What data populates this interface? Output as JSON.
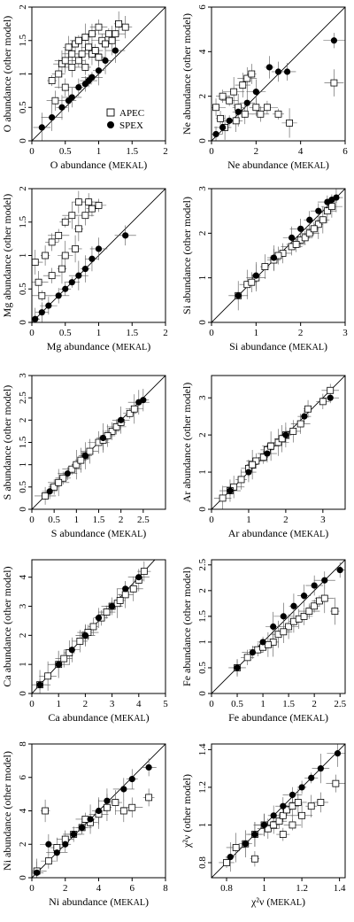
{
  "chart_data": [
    {
      "type": "scatter",
      "xlabel": "O abundance (MEKAL)",
      "ylabel": "O abundance (other model)",
      "xlim": [
        0,
        2
      ],
      "ylim": [
        0,
        2
      ],
      "xticks": [
        0,
        0.5,
        1,
        1.5,
        2
      ],
      "yticks": [
        0,
        0.5,
        1,
        1.5,
        2
      ],
      "diagonal": true,
      "legend": {
        "position": "bottom-right",
        "entries": [
          "APEC",
          "SPEX"
        ]
      },
      "series": [
        {
          "name": "APEC",
          "marker": "open-square",
          "x": [
            0.3,
            0.4,
            0.45,
            0.5,
            0.55,
            0.6,
            0.6,
            0.65,
            0.7,
            0.7,
            0.75,
            0.8,
            0.85,
            0.9,
            0.9,
            1.0,
            1.0,
            1.05,
            1.1,
            1.2,
            1.25,
            1.3,
            1.4,
            0.35,
            0.5,
            0.8,
            0.95,
            1.15
          ],
          "y": [
            0.9,
            1.0,
            1.15,
            1.2,
            1.4,
            1.1,
            1.3,
            1.45,
            1.2,
            1.5,
            1.3,
            1.55,
            1.4,
            1.3,
            1.6,
            1.25,
            1.7,
            1.5,
            1.45,
            1.5,
            1.6,
            1.75,
            1.7,
            0.6,
            0.8,
            1.1,
            1.35,
            1.6
          ]
        },
        {
          "name": "SPEX",
          "marker": "filled-circle",
          "x": [
            0.15,
            0.3,
            0.45,
            0.55,
            0.6,
            0.7,
            0.8,
            0.85,
            0.9,
            1.0,
            1.1,
            1.25
          ],
          "y": [
            0.2,
            0.35,
            0.5,
            0.6,
            0.65,
            0.8,
            0.85,
            0.9,
            0.95,
            1.05,
            1.2,
            1.35
          ]
        }
      ]
    },
    {
      "type": "scatter",
      "xlabel": "Ne abundance (MEKAL)",
      "ylabel": "Ne abundance (other model)",
      "xlim": [
        0,
        6
      ],
      "ylim": [
        0,
        6
      ],
      "xticks": [
        0,
        2,
        4,
        6
      ],
      "yticks": [
        0,
        2,
        4,
        6
      ],
      "diagonal": true,
      "series": [
        {
          "name": "APEC",
          "marker": "open-square",
          "x": [
            0.2,
            0.4,
            0.5,
            0.8,
            1.0,
            1.2,
            1.4,
            1.6,
            1.8,
            2.0,
            2.2,
            2.5,
            3.0,
            3.5,
            5.5,
            0.6,
            1.1,
            1.5
          ],
          "y": [
            1.5,
            1.0,
            2.0,
            1.8,
            2.2,
            1.5,
            2.5,
            2.8,
            3.0,
            1.5,
            1.2,
            1.5,
            1.2,
            0.8,
            2.6,
            0.6,
            0.9,
            1.2
          ]
        },
        {
          "name": "SPEX",
          "marker": "filled-circle",
          "x": [
            0.2,
            0.5,
            0.8,
            1.2,
            1.6,
            2.0,
            2.6,
            3.0,
            3.4,
            5.5
          ],
          "y": [
            0.3,
            0.6,
            0.9,
            1.3,
            1.7,
            2.2,
            3.3,
            3.1,
            3.1,
            4.5
          ]
        }
      ]
    },
    {
      "type": "scatter",
      "xlabel": "Mg abundance (MEKAL)",
      "ylabel": "Mg abundance (other model)",
      "xlim": [
        0,
        2
      ],
      "ylim": [
        0,
        2
      ],
      "xticks": [
        0,
        0.5,
        1,
        1.5,
        2
      ],
      "yticks": [
        0,
        0.5,
        1,
        1.5,
        2
      ],
      "diagonal": true,
      "series": [
        {
          "name": "APEC",
          "marker": "open-square",
          "x": [
            0.05,
            0.1,
            0.2,
            0.3,
            0.3,
            0.4,
            0.5,
            0.5,
            0.6,
            0.7,
            0.7,
            0.8,
            0.85,
            0.9,
            1.0,
            0.15,
            0.45,
            0.65
          ],
          "y": [
            0.9,
            0.6,
            1.0,
            1.2,
            0.7,
            1.3,
            1.5,
            1.0,
            1.6,
            1.4,
            1.8,
            1.6,
            1.8,
            1.7,
            1.75,
            0.4,
            0.8,
            1.1
          ]
        },
        {
          "name": "SPEX",
          "marker": "filled-circle",
          "x": [
            0.05,
            0.15,
            0.25,
            0.4,
            0.5,
            0.6,
            0.7,
            0.8,
            0.9,
            1.0,
            1.4
          ],
          "y": [
            0.05,
            0.15,
            0.25,
            0.4,
            0.5,
            0.6,
            0.7,
            0.8,
            0.95,
            1.1,
            1.3
          ]
        }
      ]
    },
    {
      "type": "scatter",
      "xlabel": "Si abundance (MEKAL)",
      "ylabel": "Si abundance (other model)",
      "xlim": [
        0,
        3
      ],
      "ylim": [
        0,
        3
      ],
      "xticks": [
        0,
        1,
        2,
        3
      ],
      "yticks": [
        0,
        1,
        2,
        3
      ],
      "diagonal": true,
      "series": [
        {
          "name": "APEC",
          "marker": "open-square",
          "x": [
            0.6,
            0.8,
            1.0,
            1.2,
            1.4,
            1.6,
            1.8,
            2.0,
            2.1,
            2.2,
            2.4,
            2.5,
            2.6,
            2.7,
            0.9,
            1.5,
            1.9,
            2.3
          ],
          "y": [
            0.6,
            0.85,
            1.0,
            1.25,
            1.4,
            1.55,
            1.7,
            1.85,
            1.9,
            2.0,
            2.2,
            2.3,
            2.5,
            2.6,
            0.9,
            1.5,
            1.75,
            2.1
          ]
        },
        {
          "name": "SPEX",
          "marker": "filled-circle",
          "x": [
            0.6,
            1.0,
            1.4,
            1.8,
            2.0,
            2.2,
            2.4,
            2.6,
            2.7,
            2.8
          ],
          "y": [
            0.6,
            1.05,
            1.45,
            1.9,
            2.1,
            2.3,
            2.5,
            2.7,
            2.75,
            2.8
          ]
        }
      ]
    },
    {
      "type": "scatter",
      "xlabel": "S abundance (MEKAL)",
      "ylabel": "S abundance (other model)",
      "xlim": [
        0,
        3
      ],
      "ylim": [
        0,
        3
      ],
      "xticks": [
        0,
        0.5,
        1,
        1.5,
        2,
        2.5
      ],
      "yticks": [
        0,
        0.5,
        1,
        1.5,
        2,
        2.5,
        3
      ],
      "diagonal": true,
      "series": [
        {
          "name": "APEC",
          "marker": "open-square",
          "x": [
            0.3,
            0.5,
            0.7,
            0.9,
            1.0,
            1.2,
            1.3,
            1.5,
            1.6,
            1.8,
            1.9,
            2.0,
            2.2,
            2.3,
            0.6,
            1.1,
            1.7
          ],
          "y": [
            0.3,
            0.5,
            0.7,
            0.9,
            1.0,
            1.2,
            1.3,
            1.5,
            1.55,
            1.75,
            1.85,
            1.95,
            2.15,
            2.25,
            0.6,
            1.1,
            1.65
          ]
        },
        {
          "name": "SPEX",
          "marker": "filled-circle",
          "x": [
            0.4,
            0.8,
            1.2,
            1.6,
            2.0,
            2.4,
            2.5
          ],
          "y": [
            0.4,
            0.8,
            1.2,
            1.6,
            2.0,
            2.4,
            2.45
          ]
        }
      ]
    },
    {
      "type": "scatter",
      "xlabel": "Ar abundance (MEKAL)",
      "ylabel": "Ar abundance (other model)",
      "xlim": [
        0,
        3.6
      ],
      "ylim": [
        0,
        3.6
      ],
      "xticks": [
        0,
        1,
        2,
        3
      ],
      "yticks": [
        0,
        1,
        2,
        3
      ],
      "diagonal": true,
      "series": [
        {
          "name": "APEC",
          "marker": "open-square",
          "x": [
            0.3,
            0.6,
            0.8,
            1.0,
            1.2,
            1.4,
            1.5,
            1.6,
            1.8,
            2.0,
            2.2,
            2.4,
            2.6,
            3.0,
            3.2,
            0.5,
            1.1,
            1.9
          ],
          "y": [
            0.3,
            0.6,
            0.8,
            1.1,
            1.3,
            1.4,
            1.6,
            1.7,
            1.8,
            2.0,
            2.1,
            2.3,
            2.7,
            2.9,
            3.2,
            0.5,
            1.2,
            1.9
          ]
        },
        {
          "name": "SPEX",
          "marker": "filled-circle",
          "x": [
            0.5,
            1.0,
            1.5,
            2.0,
            2.5,
            3.2
          ],
          "y": [
            0.5,
            1.0,
            1.5,
            2.0,
            2.5,
            3.0
          ]
        }
      ]
    },
    {
      "type": "scatter",
      "xlabel": "Ca abundance (MEKAL)",
      "ylabel": "Ca abundance (other model)",
      "xlim": [
        0,
        5
      ],
      "ylim": [
        0,
        4.6
      ],
      "xticks": [
        0,
        1,
        2,
        3,
        4,
        5
      ],
      "yticks": [
        0,
        1,
        2,
        3,
        4
      ],
      "diagonal": true,
      "series": [
        {
          "name": "APEC",
          "marker": "open-square",
          "x": [
            0.3,
            0.6,
            1.0,
            1.4,
            1.8,
            2.0,
            2.3,
            2.6,
            2.8,
            3.0,
            3.2,
            3.5,
            3.8,
            4.0,
            4.2,
            1.2,
            2.1,
            3.3
          ],
          "y": [
            0.3,
            0.6,
            1.0,
            1.4,
            1.8,
            2.0,
            2.3,
            2.6,
            2.8,
            3.0,
            3.1,
            3.4,
            3.6,
            3.9,
            4.2,
            1.2,
            2.1,
            3.2
          ]
        },
        {
          "name": "SPEX",
          "marker": "filled-circle",
          "x": [
            0.3,
            1.0,
            1.5,
            2.0,
            2.5,
            3.0,
            3.5,
            4.0
          ],
          "y": [
            0.3,
            1.0,
            1.5,
            2.0,
            2.6,
            3.0,
            3.6,
            4.0
          ]
        }
      ]
    },
    {
      "type": "scatter",
      "xlabel": "Fe abundance (MEKAL)",
      "ylabel": "Fe abundance (other model)",
      "xlim": [
        0,
        2.6
      ],
      "ylim": [
        0,
        2.6
      ],
      "xticks": [
        0,
        0.5,
        1,
        1.5,
        2,
        2.5
      ],
      "yticks": [
        0,
        0.5,
        1,
        1.5,
        2,
        2.5
      ],
      "diagonal": true,
      "series": [
        {
          "name": "APEC",
          "marker": "open-square",
          "x": [
            0.5,
            0.7,
            0.9,
            1.0,
            1.2,
            1.3,
            1.5,
            1.6,
            1.7,
            1.8,
            1.9,
            2.0,
            2.1,
            2.2,
            2.4,
            1.1,
            1.4
          ],
          "y": [
            0.5,
            0.7,
            0.85,
            0.9,
            1.0,
            1.15,
            1.3,
            1.4,
            1.45,
            1.5,
            1.6,
            1.7,
            1.8,
            1.85,
            1.6,
            0.95,
            1.2
          ]
        },
        {
          "name": "SPEX",
          "marker": "filled-circle",
          "x": [
            0.5,
            0.8,
            1.0,
            1.2,
            1.4,
            1.6,
            1.8,
            2.0,
            2.2,
            2.5
          ],
          "y": [
            0.5,
            0.8,
            1.0,
            1.3,
            1.5,
            1.7,
            1.9,
            2.1,
            2.2,
            2.4
          ]
        }
      ]
    },
    {
      "type": "scatter",
      "xlabel": "Ni abundance (MEKAL)",
      "ylabel": "Ni abundance (other model)",
      "xlim": [
        0,
        8
      ],
      "ylim": [
        0,
        8
      ],
      "xticks": [
        0,
        2,
        4,
        6,
        8
      ],
      "yticks": [
        0,
        2,
        4,
        6,
        8
      ],
      "diagonal": true,
      "series": [
        {
          "name": "APEC",
          "marker": "open-square",
          "x": [
            0.3,
            0.8,
            1.5,
            2.0,
            2.5,
            3.0,
            3.5,
            4.0,
            4.5,
            5.0,
            5.5,
            6.0,
            7.0,
            1.0,
            3.2
          ],
          "y": [
            0.4,
            4.0,
            1.8,
            2.3,
            2.6,
            3.0,
            3.3,
            3.8,
            4.2,
            4.5,
            4.0,
            4.2,
            4.8,
            1.0,
            3.5
          ]
        },
        {
          "name": "SPEX",
          "marker": "filled-circle",
          "x": [
            0.3,
            1.0,
            1.5,
            2.0,
            2.5,
            3.0,
            3.5,
            4.0,
            4.5,
            5.5,
            6.0,
            7.0
          ],
          "y": [
            0.3,
            2.0,
            1.5,
            2.0,
            2.6,
            3.0,
            3.5,
            4.0,
            4.6,
            5.3,
            5.9,
            6.6
          ]
        }
      ]
    },
    {
      "type": "scatter",
      "xlabel": "χ²ν (MEKAL)",
      "ylabel": "χ²ν (other model)",
      "xlim": [
        0.72,
        1.43
      ],
      "ylim": [
        0.72,
        1.43
      ],
      "xticks": [
        0.8,
        1.0,
        1.2,
        1.4
      ],
      "yticks": [
        0.8,
        1.0,
        1.2,
        1.4
      ],
      "xtick_labels": [
        "0.8",
        "1",
        "1.2",
        "1.4"
      ],
      "ytick_labels": [
        "0.8",
        "1",
        "1.2",
        "1.4"
      ],
      "diagonal": true,
      "series": [
        {
          "name": "APEC",
          "marker": "open-square",
          "x": [
            0.8,
            0.85,
            0.9,
            0.95,
            1.0,
            1.02,
            1.05,
            1.08,
            1.1,
            1.12,
            1.15,
            1.18,
            1.2,
            1.25,
            1.3,
            1.38,
            0.95,
            1.1,
            1.15
          ],
          "y": [
            0.8,
            0.88,
            0.9,
            0.95,
            1.0,
            0.98,
            1.0,
            1.02,
            1.05,
            1.08,
            1.1,
            1.12,
            1.05,
            1.1,
            1.12,
            1.22,
            0.82,
            0.95,
            1.0
          ]
        },
        {
          "name": "SPEX",
          "marker": "filled-circle",
          "x": [
            0.82,
            0.9,
            0.95,
            1.0,
            1.05,
            1.1,
            1.15,
            1.2,
            1.25,
            1.3,
            1.39
          ],
          "y": [
            0.83,
            0.9,
            0.95,
            1.0,
            1.05,
            1.1,
            1.16,
            1.2,
            1.25,
            1.3,
            1.38
          ]
        }
      ]
    }
  ]
}
